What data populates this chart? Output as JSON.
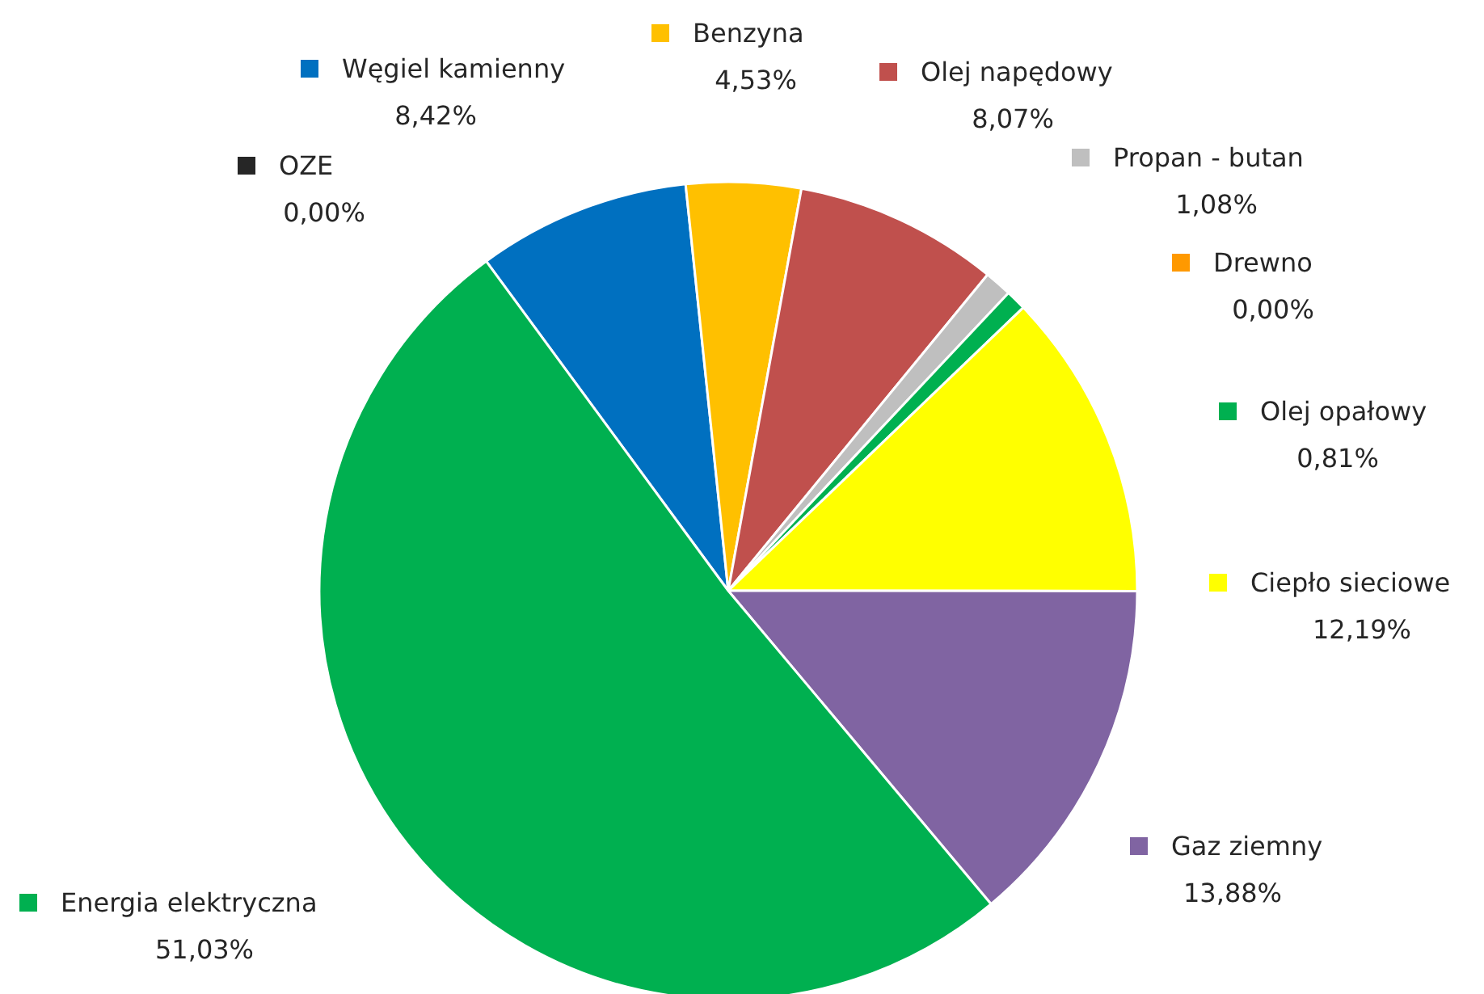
{
  "chart_data": {
    "type": "pie",
    "legend": "right",
    "categories": [
      "OZE",
      "Węgiel kamienny",
      "Benzyna",
      "Olej napędowy",
      "Propan - butan",
      "Drewno",
      "Olej opałowy",
      "Ciepło sieciowe",
      "Gaz ziemny",
      "Energia elektryczna"
    ],
    "values": [
      0.0,
      8.42,
      4.53,
      8.07,
      1.08,
      0.0,
      0.81,
      12.19,
      13.88,
      51.03
    ],
    "value_labels": [
      "0,00%",
      "8,42%",
      "4,53%",
      "8,07%",
      "1,08%",
      "0,00%",
      "0,81%",
      "12,19%",
      "13,88%",
      "51,03%"
    ],
    "colors": [
      "#262626",
      "#0070c0",
      "#ffc000",
      "#c0504d",
      "#bfbfbf",
      "#ff9900",
      "#00b050",
      "#ffff00",
      "#8064a2",
      "#00b050"
    ]
  }
}
